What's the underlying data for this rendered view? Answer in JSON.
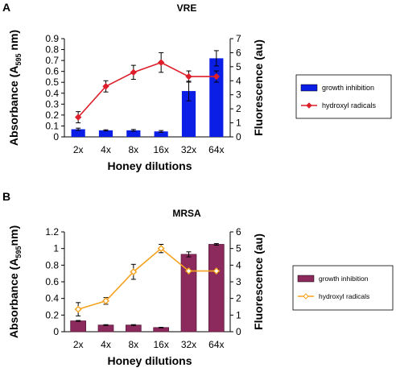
{
  "chart_data": [
    {
      "type": "bar",
      "panel_label": "A",
      "title": "VRE",
      "xlabel": "Honey dilutions",
      "ylabel": {
        "prefix": "Absorbance (A",
        "sub": "595",
        "suffix": " nm)"
      },
      "y2label": "Fluorescence (au)",
      "categories": [
        "2x",
        "4x",
        "8x",
        "16x",
        "32x",
        "64x"
      ],
      "ylim": [
        0,
        0.9
      ],
      "y_ticks": [
        "0",
        "0.1",
        "0.2",
        "0.3",
        "0.4",
        "0.5",
        "0.6",
        "0.7",
        "0.8",
        "0.9"
      ],
      "y2lim": [
        0,
        7
      ],
      "y2_ticks": [
        "0",
        "1",
        "2",
        "3",
        "4",
        "5",
        "6",
        "7"
      ],
      "series": [
        {
          "name": "growth inhibition",
          "kind": "bar",
          "axis": "left",
          "color": "#0a1ee6",
          "values": [
            0.07,
            0.06,
            0.06,
            0.05,
            0.42,
            0.72
          ],
          "errors": [
            0.01,
            0.005,
            0.008,
            0.008,
            0.09,
            0.07
          ]
        },
        {
          "name": "hydroxyl radicals",
          "kind": "line",
          "axis": "right",
          "color": "#dd1f2b",
          "values": [
            1.4,
            3.6,
            4.6,
            5.3,
            4.3,
            4.3
          ],
          "errors": [
            0.4,
            0.4,
            0.5,
            0.7,
            0.4,
            0.4
          ]
        }
      ],
      "legend": "right"
    },
    {
      "type": "bar",
      "panel_label": "B",
      "title": "MRSA",
      "xlabel": "Honey dilutions",
      "ylabel": {
        "prefix": "Absorbance (A",
        "sub": "595",
        "suffix": "nm)"
      },
      "y2label": "Fluorescence (au)",
      "categories": [
        "2x",
        "4x",
        "8x",
        "16x",
        "32x",
        "64x"
      ],
      "ylim": [
        0,
        1.2
      ],
      "y_ticks": [
        "0",
        "0.2",
        "0.4",
        "0.6",
        "0.8",
        "1",
        "1.2"
      ],
      "y2lim": [
        0,
        6
      ],
      "y2_ticks": [
        "0",
        "1",
        "2",
        "3",
        "4",
        "5",
        "6"
      ],
      "series": [
        {
          "name": "growth inhibition",
          "kind": "bar",
          "axis": "left",
          "color": "#8c2a5e",
          "values": [
            0.13,
            0.08,
            0.08,
            0.05,
            0.93,
            1.05
          ],
          "errors": [
            0.005,
            0.005,
            0.005,
            0.003,
            0.03,
            0.01
          ]
        },
        {
          "name": "hydroxyl radicals",
          "kind": "line",
          "axis": "right",
          "color": "#f5a21d",
          "values": [
            1.35,
            1.85,
            3.6,
            5.0,
            3.65,
            3.65
          ],
          "errors": [
            0.4,
            0.2,
            0.45,
            0.25,
            0.1,
            0.1
          ]
        }
      ],
      "legend": "right"
    }
  ]
}
